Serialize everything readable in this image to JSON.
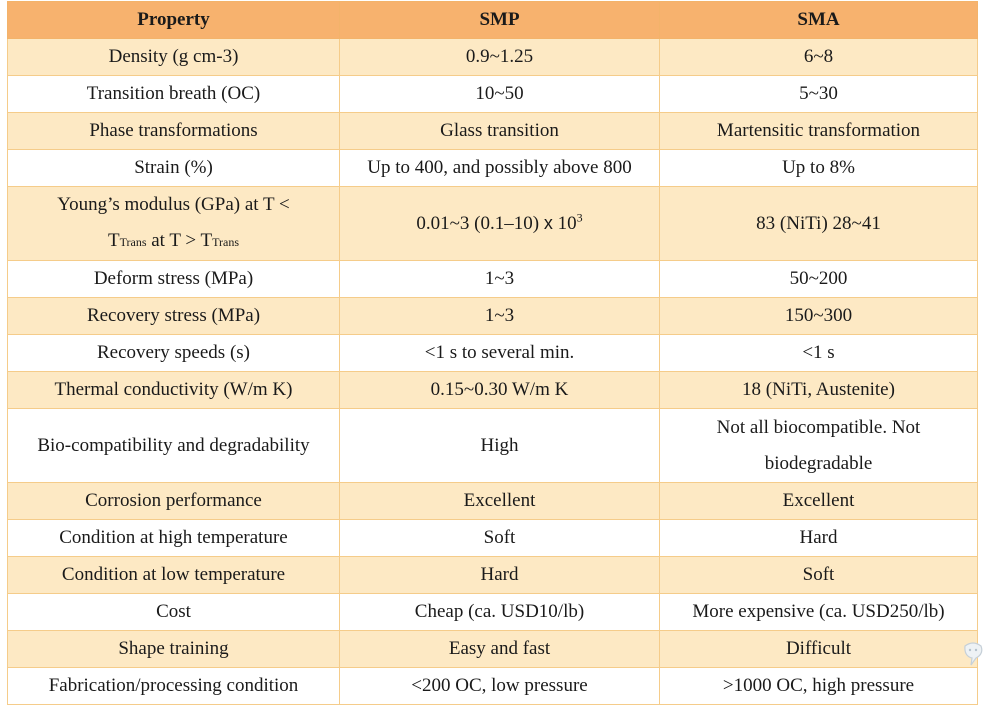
{
  "header": {
    "col1": "Property",
    "col2": "SMP",
    "col3": "SMA"
  },
  "rows": [
    {
      "property": "Density (g cm-3)",
      "smp": "0.9~1.25",
      "sma": "6~8"
    },
    {
      "property": "Transition breath (OC)",
      "smp": "10~50",
      "sma": "5~30"
    },
    {
      "property": "Phase transformations",
      "smp": "Glass transition",
      "sma": "Martensitic transformation"
    },
    {
      "property": "Strain (%)",
      "smp": "Up to 400, and possibly above 800",
      "sma": "Up to 8%"
    },
    {
      "property_line1": "Young’s modulus (GPa) at T <",
      "property_t1": "T",
      "property_sub1": "Trans",
      "property_mid": " at T > T",
      "property_sub2": "Trans",
      "smp_base": "0.01~3 (0.1–10) ",
      "smp_x": "x",
      "smp_ten": " 10",
      "smp_exp": "3",
      "sma": "83 (NiTi) 28~41"
    },
    {
      "property": "Deform stress (MPa)",
      "smp": "1~3",
      "sma": "50~200"
    },
    {
      "property": "Recovery stress (MPa)",
      "smp": "1~3",
      "sma": "150~300"
    },
    {
      "property": "Recovery speeds (s)",
      "smp": "<1 s to several min.",
      "sma": "<1 s"
    },
    {
      "property": "Thermal conductivity (W/m K)",
      "smp": "0.15~0.30 W/m K",
      "sma": "18 (NiTi, Austenite)"
    },
    {
      "property": "Bio-compatibility and degradability",
      "smp": "High",
      "sma_line1": "Not all biocompatible. Not",
      "sma_line2": "biodegradable"
    },
    {
      "property": "Corrosion performance",
      "smp": "Excellent",
      "sma": "Excellent"
    },
    {
      "property": "Condition at high temperature",
      "smp": "Soft",
      "sma": "Hard"
    },
    {
      "property": "Condition at low temperature",
      "smp": "Hard",
      "sma": "Soft"
    },
    {
      "property": "Cost",
      "smp": "Cheap (ca. USD10/lb)",
      "sma": "More expensive (ca. USD250/lb)"
    },
    {
      "property": "Shape training",
      "smp": "Easy and fast",
      "sma": "Difficult"
    },
    {
      "property": "Fabrication/processing condition",
      "smp": "<200 OC, low pressure",
      "sma": ">1000 OC, high pressure"
    }
  ],
  "watermark_icon": "chat-bubble-icon"
}
